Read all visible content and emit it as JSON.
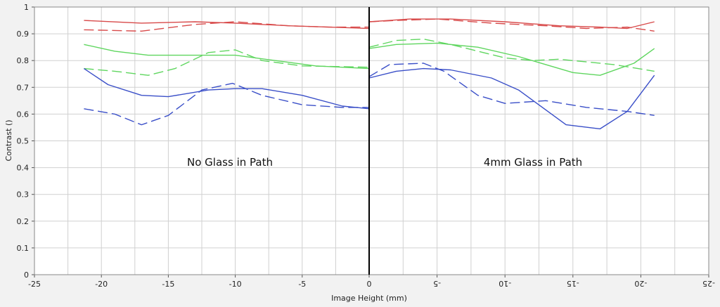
{
  "chart_data": {
    "type": "line",
    "title": "",
    "xlabel": "Image Height (mm)",
    "ylabel": "Contrast ()",
    "ylim": [
      0,
      1
    ],
    "yticks": [
      "0",
      "0.1",
      "0.2",
      "0.3",
      "0.4",
      "0.5",
      "0.6",
      "0.7",
      "0.8",
      "0.9",
      "1"
    ],
    "grid": true,
    "panels": [
      {
        "annotation": "No Glass in Path",
        "xlim": [
          -25,
          0
        ],
        "xticks": [
          "-25",
          "-20",
          "-15",
          "-10",
          "-5",
          "0"
        ],
        "series": [
          {
            "color": "#d84a4a",
            "dash": "solid",
            "x": [
              -21.3,
              -17,
              -13,
              -10,
              -6,
              -3,
              0
            ],
            "y": [
              0.95,
              0.94,
              0.945,
              0.94,
              0.93,
              0.925,
              0.92
            ]
          },
          {
            "color": "#d84a4a",
            "dash": "dashed",
            "x": [
              -21.3,
              -17,
              -13,
              -10,
              -6,
              -3,
              0
            ],
            "y": [
              0.915,
              0.91,
              0.935,
              0.945,
              0.93,
              0.925,
              0.925
            ]
          },
          {
            "color": "#5fd65f",
            "dash": "solid",
            "x": [
              -21.3,
              -19,
              -16.5,
              -13,
              -10,
              -7,
              -4,
              0
            ],
            "y": [
              0.86,
              0.835,
              0.82,
              0.82,
              0.82,
              0.8,
              0.78,
              0.77
            ]
          },
          {
            "color": "#5fd65f",
            "dash": "dashed",
            "x": [
              -21.3,
              -19,
              -16.5,
              -14.5,
              -12,
              -10,
              -8,
              -5,
              0
            ],
            "y": [
              0.77,
              0.76,
              0.745,
              0.77,
              0.83,
              0.84,
              0.8,
              0.78,
              0.775
            ]
          },
          {
            "color": "#3a4fc8",
            "dash": "solid",
            "x": [
              -21.3,
              -19.5,
              -17,
              -15,
              -12,
              -10,
              -8,
              -5,
              -2,
              0
            ],
            "y": [
              0.77,
              0.71,
              0.67,
              0.665,
              0.69,
              0.695,
              0.695,
              0.67,
              0.63,
              0.62
            ]
          },
          {
            "color": "#3a4fc8",
            "dash": "dashed",
            "x": [
              -21.3,
              -19,
              -17,
              -15,
              -12.5,
              -10.2,
              -8,
              -5,
              -2,
              0
            ],
            "y": [
              0.62,
              0.6,
              0.56,
              0.595,
              0.69,
              0.715,
              0.67,
              0.635,
              0.625,
              0.625
            ]
          }
        ]
      },
      {
        "annotation": "4mm Glass in Path",
        "xlim": [
          0,
          -25
        ],
        "xticks": [
          "0",
          "-5",
          "-10",
          "-15",
          "-20",
          "-25"
        ],
        "series": [
          {
            "color": "#d84a4a",
            "dash": "solid",
            "x": [
              0,
              -3,
              -6,
              -10,
              -14,
              -17,
              -19,
              -21
            ],
            "y": [
              0.945,
              0.955,
              0.955,
              0.945,
              0.93,
              0.925,
              0.92,
              0.945
            ]
          },
          {
            "color": "#d84a4a",
            "dash": "dashed",
            "x": [
              0,
              -2,
              -5,
              -9,
              -13,
              -16,
              -19,
              -21
            ],
            "y": [
              0.945,
              0.95,
              0.955,
              0.94,
              0.93,
              0.92,
              0.925,
              0.91
            ]
          },
          {
            "color": "#5fd65f",
            "dash": "solid",
            "x": [
              0,
              -2,
              -5,
              -8,
              -11,
              -15,
              -17,
              -19.5,
              -21
            ],
            "y": [
              0.845,
              0.86,
              0.865,
              0.85,
              0.815,
              0.755,
              0.745,
              0.79,
              0.845
            ]
          },
          {
            "color": "#5fd65f",
            "dash": "dashed",
            "x": [
              0,
              -2,
              -4,
              -6,
              -10,
              -12,
              -14,
              -16,
              -18,
              -21
            ],
            "y": [
              0.85,
              0.875,
              0.88,
              0.86,
              0.81,
              0.8,
              0.805,
              0.795,
              0.785,
              0.76
            ]
          },
          {
            "color": "#3a4fc8",
            "dash": "solid",
            "x": [
              0,
              -2,
              -4,
              -6,
              -9,
              -11,
              -14.5,
              -17,
              -19,
              -21
            ],
            "y": [
              0.735,
              0.76,
              0.77,
              0.765,
              0.735,
              0.69,
              0.56,
              0.545,
              0.61,
              0.745
            ]
          },
          {
            "color": "#3a4fc8",
            "dash": "dashed",
            "x": [
              0,
              -1.5,
              -4,
              -5.5,
              -8,
              -10,
              -13,
              -16,
              -19,
              -21
            ],
            "y": [
              0.74,
              0.785,
              0.79,
              0.76,
              0.67,
              0.64,
              0.65,
              0.625,
              0.61,
              0.595
            ]
          }
        ]
      }
    ]
  },
  "colors": {
    "background": "#f2f2f2",
    "plot_background": "#ffffff",
    "grid": "#d0d0d0",
    "center_line": "#000000"
  }
}
